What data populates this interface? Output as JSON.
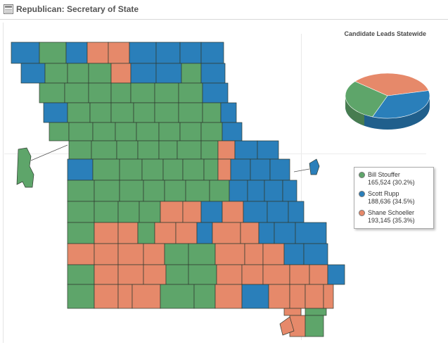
{
  "header": {
    "title": "Republican: Secretary of State",
    "icon": "window-icon"
  },
  "pie": {
    "title": "Candidate Leads Statewide"
  },
  "colors": {
    "stouffer": "#5ea56a",
    "rupp": "#2a7fba",
    "schoeller": "#e6896a",
    "border": "#2f3a30"
  },
  "candidates": [
    {
      "name": "Bill Stouffer",
      "votes": "165,524",
      "pct_label": "(30.2%)",
      "share": 30.2,
      "color": "#5ea56a"
    },
    {
      "name": "Scott Rupp",
      "votes": "188,636",
      "pct_label": "(34.5%)",
      "share": 34.5,
      "color": "#2a7fba"
    },
    {
      "name": "Shane Schoeller",
      "votes": "193,145",
      "pct_label": "(35.3%)",
      "share": 35.3,
      "color": "#e6896a"
    }
  ]
}
